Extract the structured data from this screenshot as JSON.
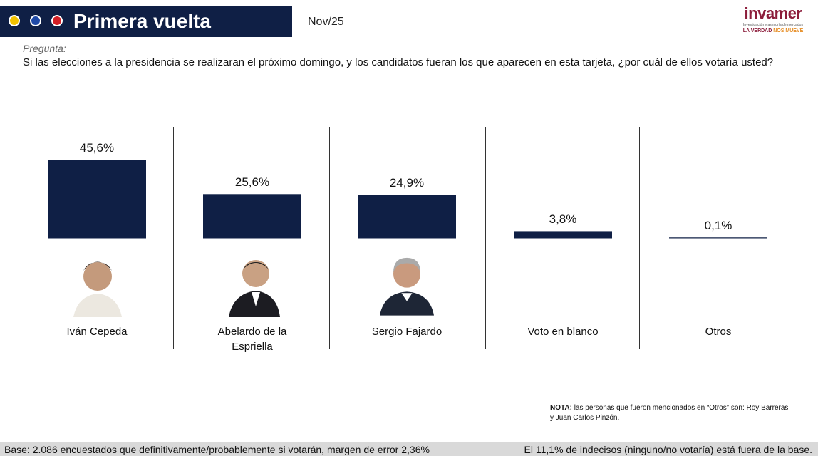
{
  "header": {
    "title": "Primera vuelta",
    "date": "Nov/25",
    "question_label": "Pregunta:",
    "question": "Si las elecciones a la presidencia se realizaran el próximo domingo, y los candidatos fueran los que aparecen en esta tarjeta, ¿por cuál de ellos votaría usted?"
  },
  "logo": {
    "name": "invamer",
    "tagline": "Investigación y asesoría de mercados",
    "slogan": "LA VERDAD",
    "slogan_accent": "NOS MUEVE"
  },
  "chart_data": {
    "type": "bar",
    "categories": [
      "Iván Cepeda",
      "Abelardo de la Espriella",
      "Sergio Fajardo",
      "Voto en blanco",
      "Otros"
    ],
    "values": [
      45.6,
      25.6,
      24.9,
      3.8,
      0.1
    ],
    "value_labels": [
      "45,6%",
      "25,6%",
      "24,9%",
      "3,8%",
      "0,1%"
    ],
    "color": "#0f1f45"
  },
  "note": {
    "label": "NOTA:",
    "text": "las personas que fueron mencionados en “Otros” son: Roy Barreras y Juan Carlos Pinzón."
  },
  "footer": {
    "left": "Base: 2.086 encuestados que definitivamente/probablemente si votarán, margen de error 2,36%",
    "right": "El 11,1% de indecisos (ninguno/no votaría) está fuera de la base."
  }
}
